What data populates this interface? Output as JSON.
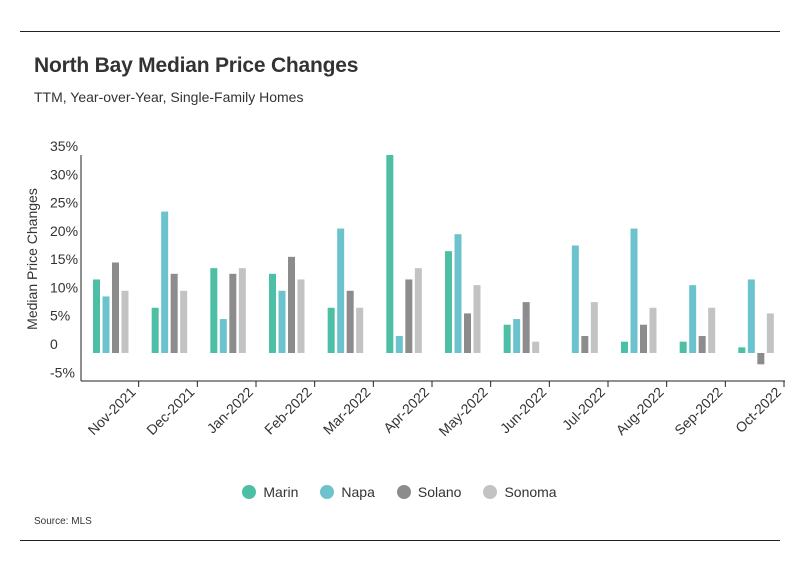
{
  "header": {
    "title": "North Bay Median Price Changes",
    "subtitle": "TTM, Year-over-Year, Single-Family Homes"
  },
  "footer": {
    "source": "Source: MLS"
  },
  "colors": {
    "Marin": "#4dbfa5",
    "Napa": "#6cc3cd",
    "Solano": "#8c8c8c",
    "Sonoma": "#c3c3c3"
  },
  "chart_data": {
    "type": "bar",
    "title": "North Bay Median Price Changes",
    "subtitle": "TTM, Year-over-Year, Single-Family Homes",
    "xlabel": "",
    "ylabel": "Median Price Changes",
    "ylim": [
      -7,
      35
    ],
    "yticks": [
      35,
      30,
      25,
      20,
      15,
      10,
      5,
      0,
      -5
    ],
    "ytick_labels": [
      "35%",
      "30%",
      "25%",
      "20%",
      "15%",
      "10%",
      "5%",
      "0",
      "-5%"
    ],
    "grid": false,
    "legend": "bottom-center",
    "categories": [
      "Nov-2021",
      "Dec-2021",
      "Jan-2022",
      "Feb-2022",
      "Mar-2022",
      "Apr-2022",
      "May-2022",
      "Jun-2022",
      "Jul-2022",
      "Aug-2022",
      "Sep-2022",
      "Oct-2022"
    ],
    "series": [
      {
        "name": "Marin",
        "values": [
          13,
          8,
          15,
          14,
          8,
          35,
          18,
          5,
          0,
          2,
          2,
          1
        ]
      },
      {
        "name": "Napa",
        "values": [
          10,
          25,
          6,
          11,
          22,
          3,
          21,
          6,
          19,
          22,
          12,
          13
        ]
      },
      {
        "name": "Solano",
        "values": [
          16,
          14,
          14,
          17,
          11,
          13,
          7,
          9,
          3,
          5,
          3,
          -2
        ]
      },
      {
        "name": "Sonoma",
        "values": [
          11,
          11,
          15,
          13,
          8,
          15,
          12,
          2,
          9,
          8,
          8,
          7
        ]
      }
    ]
  }
}
